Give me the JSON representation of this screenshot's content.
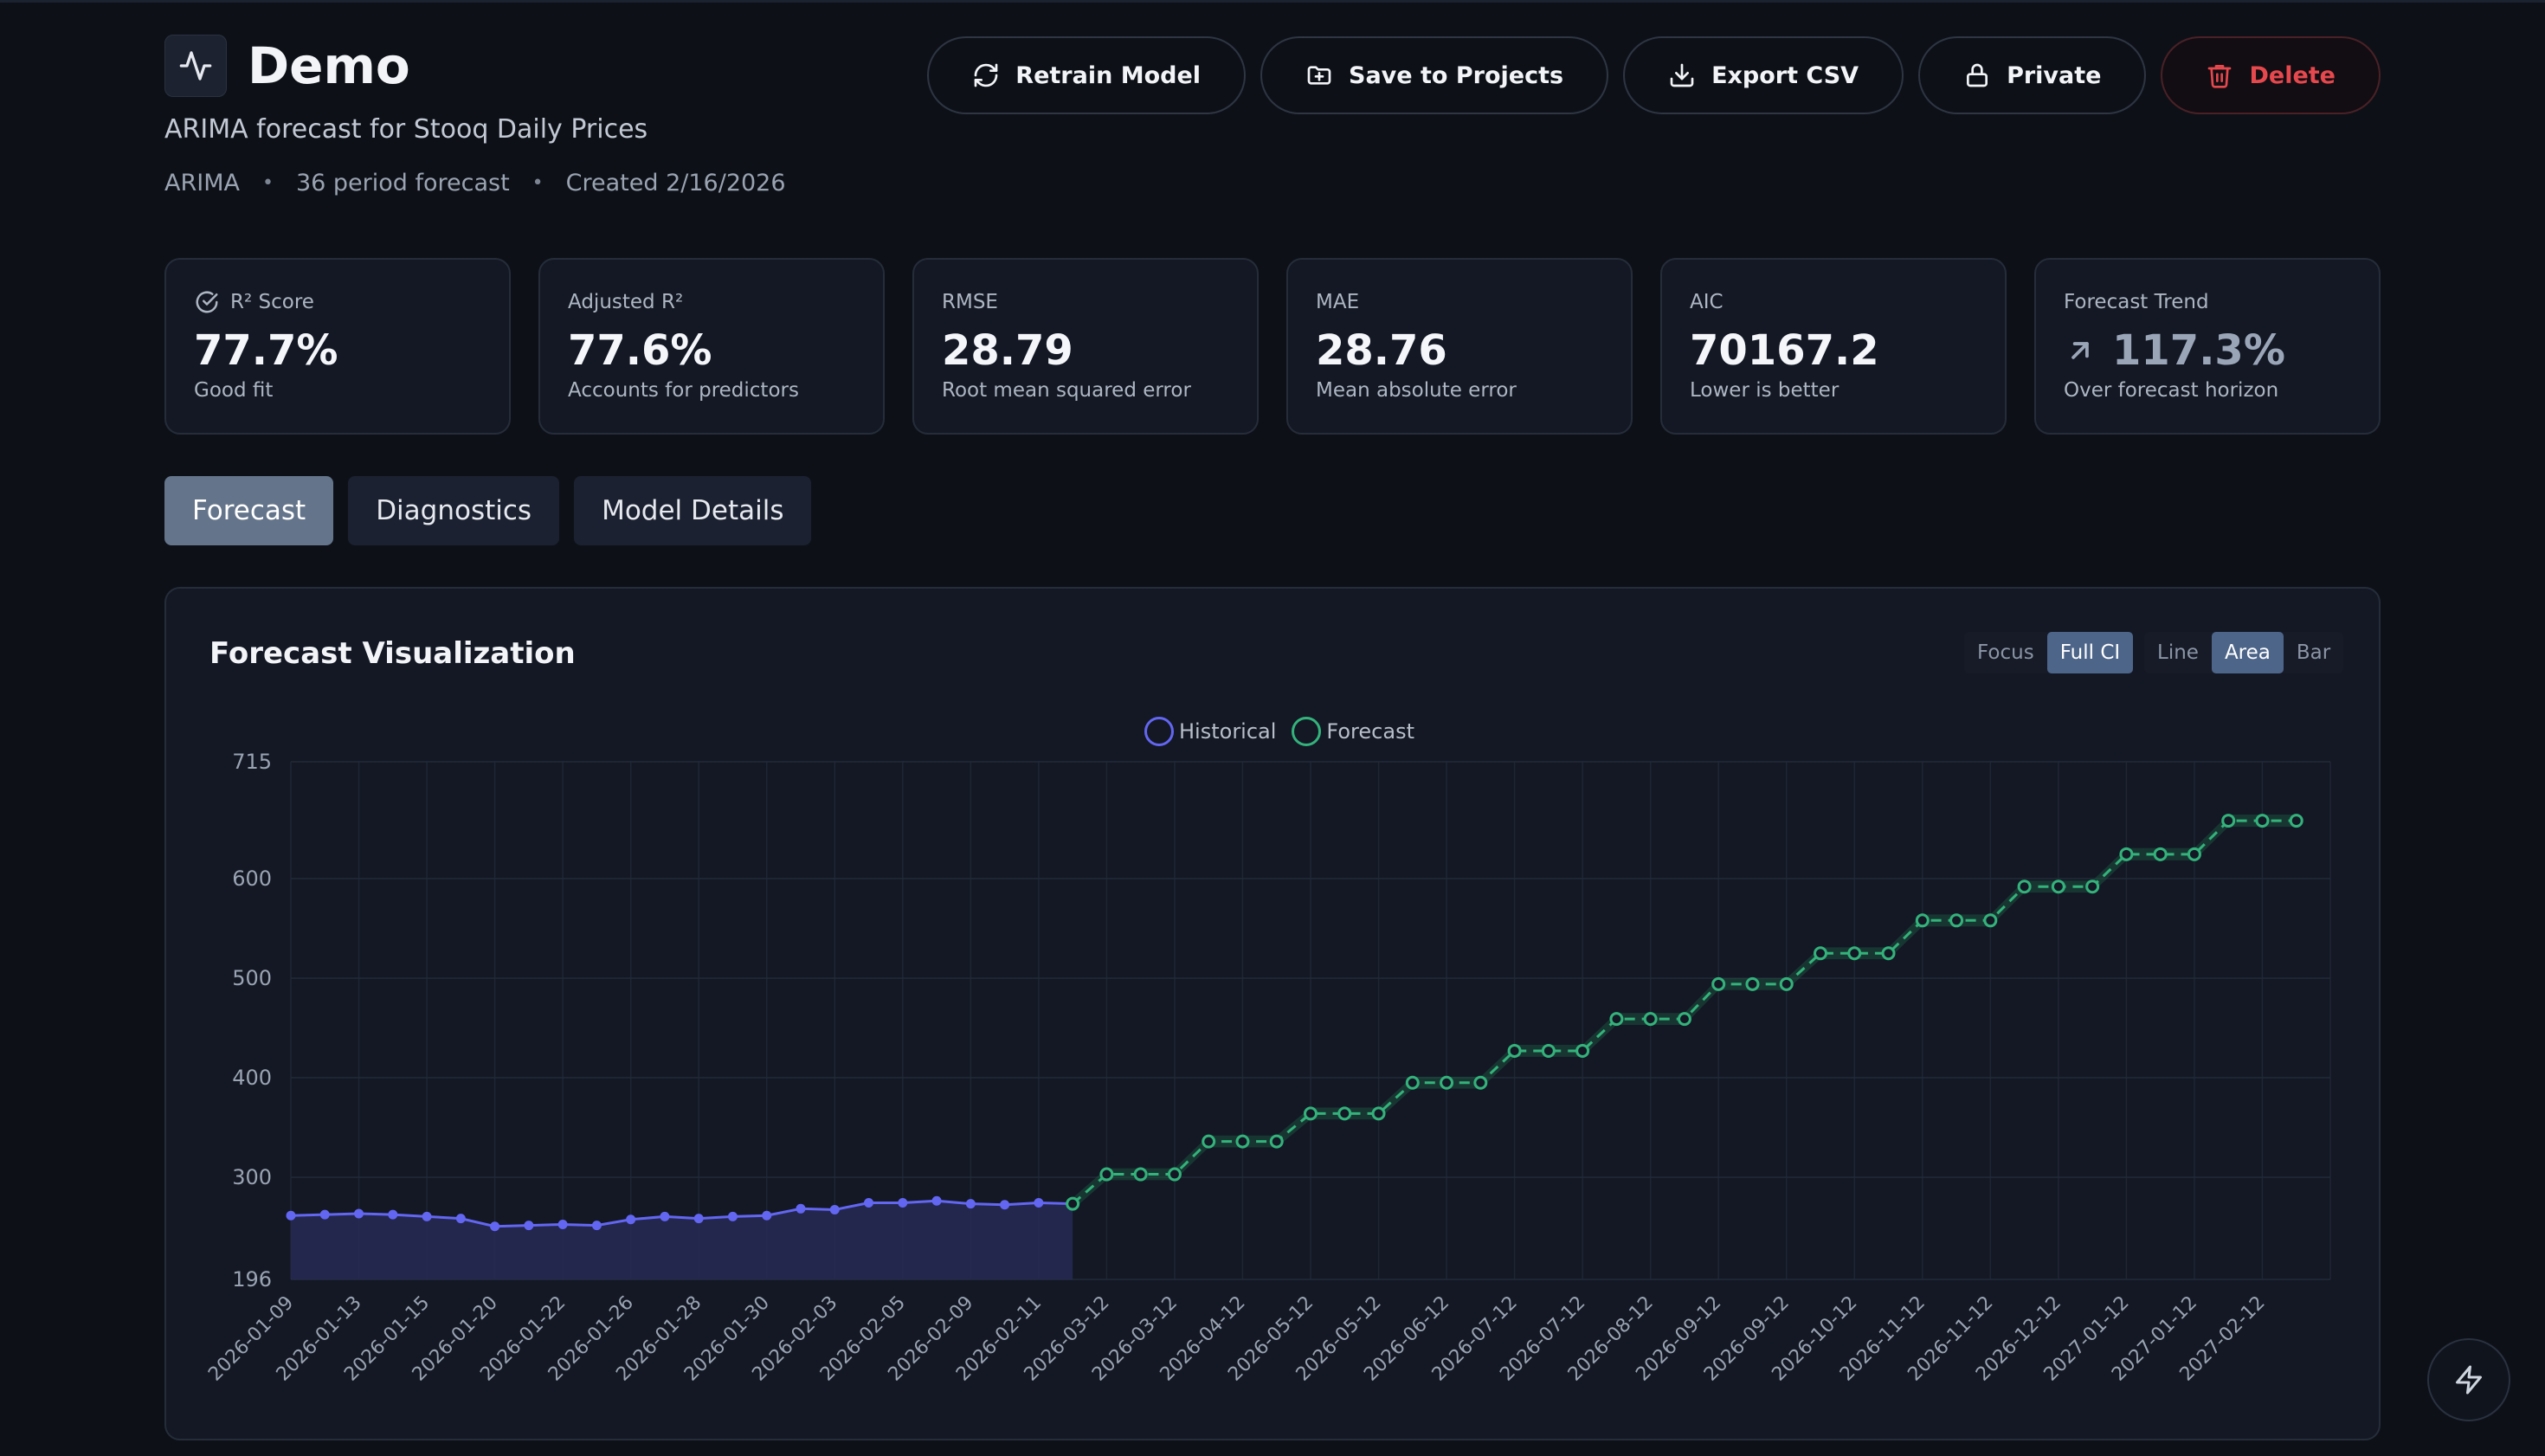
{
  "app": {
    "title": "Demo",
    "subtitle": "ARIMA forecast for Stooq Daily Prices",
    "meta": [
      "ARIMA",
      "36 period forecast",
      "Created 2/16/2026"
    ],
    "icon": "activity-icon"
  },
  "actions": {
    "retrain": "Retrain Model",
    "save": "Save to Projects",
    "export": "Export CSV",
    "privacy": "Private",
    "delete": "Delete"
  },
  "metrics": [
    {
      "label": "R² Score",
      "value": "77.7%",
      "desc": "Good fit",
      "icon": "check-circle-icon"
    },
    {
      "label": "Adjusted R²",
      "value": "77.6%",
      "desc": "Accounts for predictors"
    },
    {
      "label": "RMSE",
      "value": "28.79",
      "desc": "Root mean squared error"
    },
    {
      "label": "MAE",
      "value": "28.76",
      "desc": "Mean absolute error"
    },
    {
      "label": "AIC",
      "value": "70167.2",
      "desc": "Lower is better"
    },
    {
      "label": "Forecast Trend",
      "value": "117.3%",
      "desc": "Over forecast horizon",
      "icon": "arrow-up-right-icon"
    }
  ],
  "tabs": [
    {
      "label": "Forecast",
      "active": true
    },
    {
      "label": "Diagnostics",
      "active": false
    },
    {
      "label": "Model Details",
      "active": false
    }
  ],
  "chart": {
    "title": "Forecast Visualization",
    "view_options": [
      "Focus",
      "Full CI"
    ],
    "view_selected": "Full CI",
    "type_options": [
      "Line",
      "Area",
      "Bar"
    ],
    "type_selected": "Area",
    "legend": [
      "Historical",
      "Forecast"
    ]
  },
  "colors": {
    "historical": "#6366f1",
    "forecast": "#34b27b",
    "danger": "#e5484d",
    "accent": "#4d6589"
  },
  "chart_data": {
    "type": "area",
    "yticks": [
      196,
      300,
      400,
      500,
      600,
      715
    ],
    "ylim": [
      196,
      715
    ],
    "legend_position": "top-center",
    "grid": true,
    "x_tick_labels": [
      "2026-01-09",
      "2026-01-13",
      "2026-01-15",
      "2026-01-20",
      "2026-01-22",
      "2026-01-26",
      "2026-01-28",
      "2026-01-30",
      "2026-02-03",
      "2026-02-05",
      "2026-02-09",
      "2026-02-11",
      "2026-03-12",
      "2026-03-12",
      "2026-04-12",
      "2026-05-12",
      "2026-05-12",
      "2026-06-12",
      "2026-07-12",
      "2026-07-12",
      "2026-08-12",
      "2026-09-12",
      "2026-09-12",
      "2026-10-12",
      "2026-11-12",
      "2026-11-12",
      "2026-12-12",
      "2027-01-12",
      "2027-01-12",
      "2027-02-12"
    ],
    "series": [
      {
        "name": "Historical",
        "values": [
          261,
          262,
          263,
          262,
          260,
          258,
          250,
          251,
          252,
          251,
          257,
          260,
          258,
          260,
          261,
          268,
          267,
          274,
          274,
          276,
          273,
          272,
          274,
          273
        ]
      },
      {
        "name": "Forecast",
        "values": [
          273,
          303,
          303,
          303,
          336,
          336,
          336,
          364,
          364,
          364,
          395,
          395,
          395,
          427,
          427,
          427,
          459,
          459,
          459,
          494,
          494,
          494,
          525,
          525,
          525,
          558,
          558,
          558,
          592,
          592,
          592,
          624,
          624,
          624,
          657,
          657,
          657
        ]
      }
    ]
  }
}
